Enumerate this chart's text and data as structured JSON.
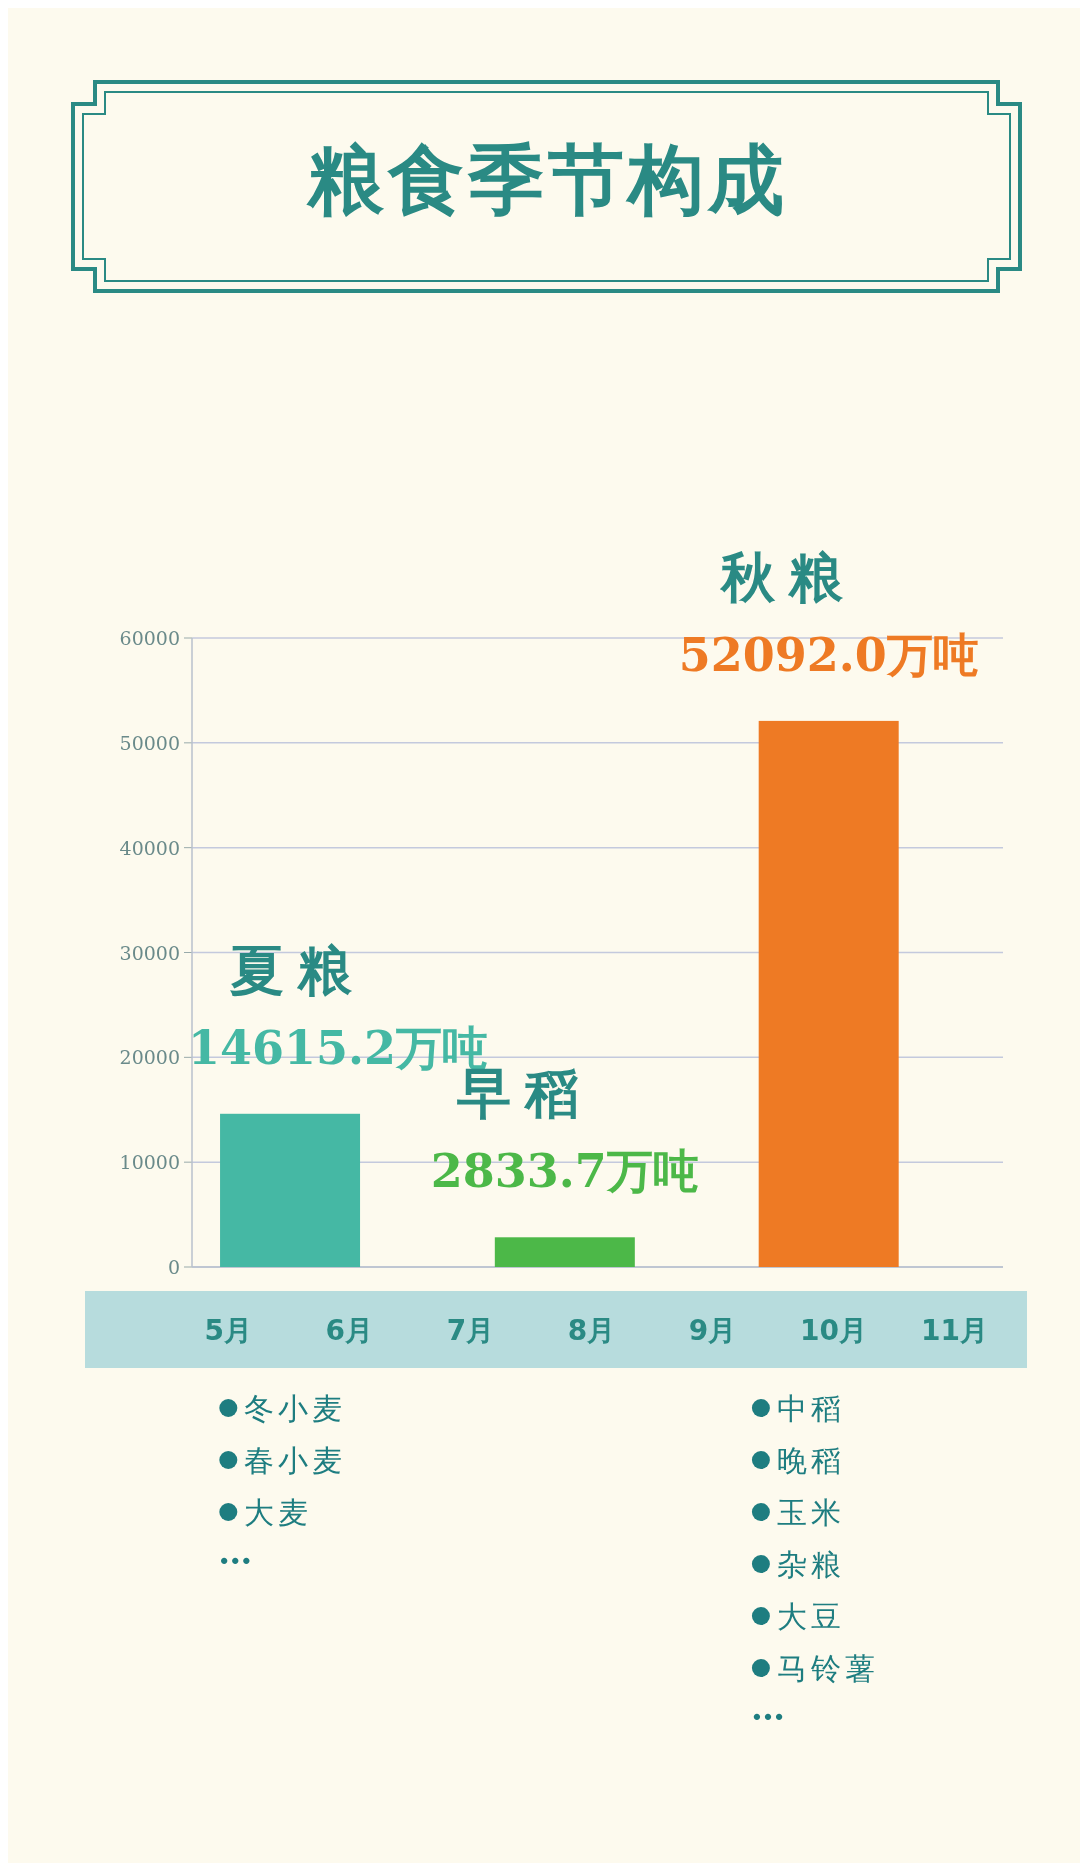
{
  "chart_data": {
    "type": "bar",
    "title": "粮食季节构成",
    "xlim": [
      4.7,
      11.4
    ],
    "xticks": [
      {
        "value": 5,
        "label": "5月"
      },
      {
        "value": 6,
        "label": "6月"
      },
      {
        "value": 7,
        "label": "7月"
      },
      {
        "value": 8,
        "label": "8月"
      },
      {
        "value": 9,
        "label": "9月"
      },
      {
        "value": 10,
        "label": "10月"
      },
      {
        "value": 11,
        "label": "11月"
      }
    ],
    "ylim": [
      0,
      60000
    ],
    "yticks": [
      0,
      10000,
      20000,
      30000,
      40000,
      50000,
      60000
    ],
    "grid": "y",
    "series": [
      {
        "name": "夏粮",
        "color": "#45b8a4",
        "x": [
          5.51
        ],
        "values": [
          14615.2
        ],
        "value_labels": [
          "14615.2万吨"
        ]
      },
      {
        "name": "早稻",
        "color": "#4cb848",
        "x": [
          7.78
        ],
        "values": [
          2833.7
        ],
        "value_labels": [
          "2833.7万吨"
        ]
      },
      {
        "name": "秋粮",
        "color": "#ee7a24",
        "x": [
          9.96
        ],
        "values": [
          52092.0
        ],
        "value_labels": [
          "52092.0万吨"
        ]
      }
    ],
    "annotations": [
      "冬小麦",
      "春小麦",
      "大麦",
      "…",
      "中稻",
      "晚稻",
      "玉米",
      "杂粮",
      "大豆",
      "马铃薯",
      "…"
    ]
  }
}
